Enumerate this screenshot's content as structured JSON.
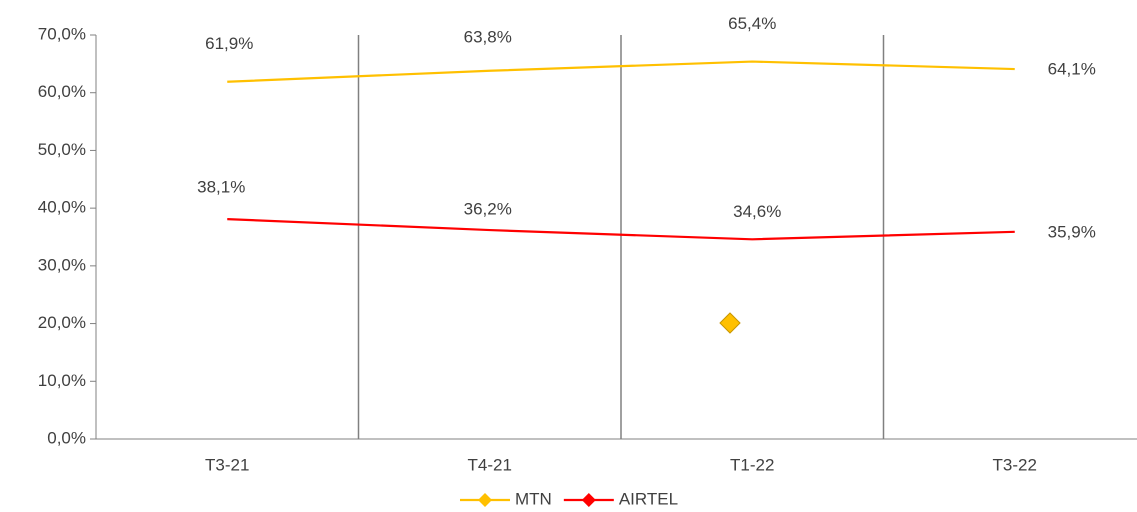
{
  "chart_data": {
    "type": "line",
    "categories": [
      "T3-21",
      "T4-21",
      "T1-22",
      "T3-22"
    ],
    "series": [
      {
        "name": "MTN",
        "color": "#ffc000",
        "values": [
          61.9,
          63.8,
          65.4,
          64.1
        ],
        "value_labels": [
          "61,9%",
          "63,8%",
          "65,4%",
          "64,1%"
        ]
      },
      {
        "name": "AIRTEL",
        "color": "#ff0000",
        "values": [
          38.1,
          36.2,
          34.6,
          35.9
        ],
        "value_labels": [
          "38,1%",
          "36,2%",
          "34,6%",
          "35,9%"
        ]
      }
    ],
    "ylim": [
      0,
      70
    ],
    "yticks": [
      {
        "value": 0,
        "label": "0,0%"
      },
      {
        "value": 10,
        "label": "10,0%"
      },
      {
        "value": 20,
        "label": "20,0%"
      },
      {
        "value": 30,
        "label": "30,0%"
      },
      {
        "value": 40,
        "label": "40,0%"
      },
      {
        "value": 50,
        "label": "50,0%"
      },
      {
        "value": 60,
        "label": "60,0%"
      },
      {
        "value": 70,
        "label": "70,0%"
      }
    ],
    "legend": "bottom"
  }
}
